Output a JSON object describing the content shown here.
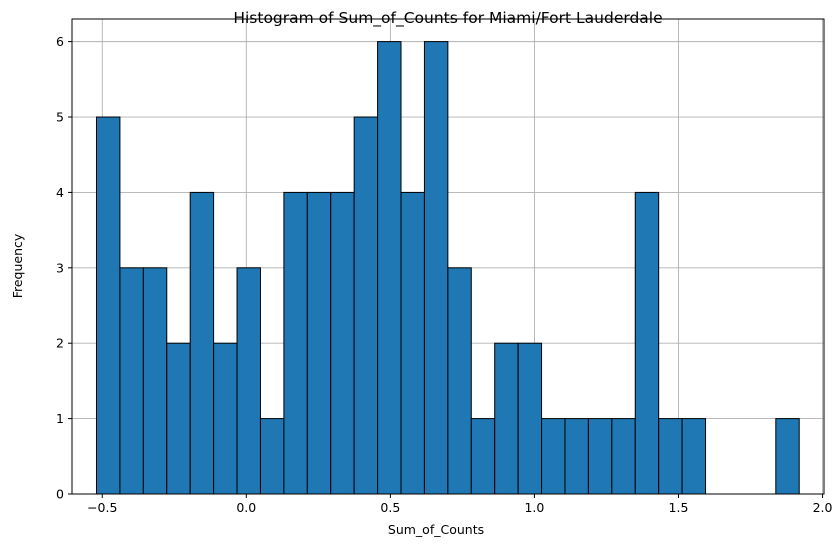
{
  "chart_data": {
    "type": "bar",
    "title": "Histogram of Sum_of_Counts for Miami/Fort Lauderdale",
    "xlabel": "Sum_of_Counts",
    "ylabel": "Frequency",
    "xlim": [
      -0.605,
      2.005
    ],
    "ylim": [
      0,
      6.3
    ],
    "xticks": [
      -0.5,
      0.0,
      0.5,
      1.0,
      1.5,
      2.0
    ],
    "xtick_labels": [
      "−0.5",
      "0.0",
      "0.5",
      "1.0",
      "1.5",
      "2.0"
    ],
    "yticks": [
      0,
      1,
      2,
      3,
      4,
      5,
      6
    ],
    "ytick_labels": [
      "0",
      "1",
      "2",
      "3",
      "4",
      "5",
      "6"
    ],
    "bin_start": -0.52,
    "bin_width": 0.0813,
    "values": [
      5,
      3,
      3,
      2,
      4,
      2,
      3,
      1,
      4,
      4,
      4,
      5,
      6,
      4,
      6,
      3,
      1,
      2,
      2,
      1,
      1,
      1,
      1,
      4,
      1,
      1,
      0,
      0,
      0,
      1
    ],
    "grid": true,
    "colors": {
      "bar": "#1f77b4",
      "edge": "#000000",
      "grid": "#b0b0b0"
    }
  }
}
